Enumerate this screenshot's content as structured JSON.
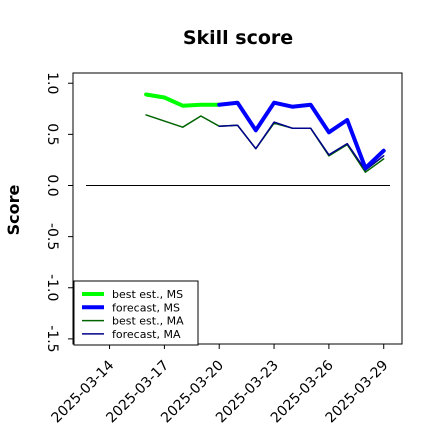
{
  "chart_data": {
    "type": "line",
    "title": "Skill score",
    "xlabel": "",
    "ylabel": "Score",
    "ylim": [
      -1.55,
      1.1
    ],
    "yticks": [
      1.0,
      0.5,
      0.0,
      -0.5,
      -1.0,
      -1.5
    ],
    "ytick_labels": [
      "1.0",
      "0.5",
      "0.0",
      "-0.5",
      "-1.0",
      "-1.5"
    ],
    "xlim": [
      "2025-03-12",
      "2025-03-30"
    ],
    "xticks": [
      "2025-03-14",
      "2025-03-17",
      "2025-03-20",
      "2025-03-23",
      "2025-03-26",
      "2025-03-29"
    ],
    "xtick_labels": [
      "2025-03-14",
      "2025-03-17",
      "2025-03-20",
      "2025-03-23",
      "2025-03-26",
      "2025-03-29"
    ],
    "xtick_label_colors": [
      "#000000",
      "#000000",
      "#228B22",
      "#000000",
      "#000000",
      "#000000"
    ],
    "reference_line": {
      "y": 0,
      "color": "#000000"
    },
    "legend": {
      "placement": "lower-left"
    },
    "grid": false,
    "series": [
      {
        "name": "best est., MS",
        "color": "#00ff00",
        "width": "thick",
        "x": [
          "2025-03-16",
          "2025-03-17",
          "2025-03-18",
          "2025-03-19",
          "2025-03-20"
        ],
        "values": [
          0.89,
          0.86,
          0.78,
          0.79,
          0.79
        ]
      },
      {
        "name": "forecast, MS",
        "color": "#0000ff",
        "width": "thick",
        "x": [
          "2025-03-20",
          "2025-03-21",
          "2025-03-22",
          "2025-03-23",
          "2025-03-24",
          "2025-03-25",
          "2025-03-26",
          "2025-03-27",
          "2025-03-28",
          "2025-03-29"
        ],
        "values": [
          0.79,
          0.81,
          0.54,
          0.81,
          0.77,
          0.79,
          0.52,
          0.64,
          0.17,
          0.34
        ]
      },
      {
        "name": "best est., MA",
        "color": "#006400",
        "width": "thin",
        "x": [
          "2025-03-16",
          "2025-03-17",
          "2025-03-18",
          "2025-03-19",
          "2025-03-20",
          "2025-03-21",
          "2025-03-22",
          "2025-03-23",
          "2025-03-24",
          "2025-03-25",
          "2025-03-26",
          "2025-03-27",
          "2025-03-28",
          "2025-03-29"
        ],
        "values": [
          0.69,
          0.63,
          0.57,
          0.68,
          0.58,
          0.59,
          0.36,
          0.61,
          0.56,
          0.56,
          0.29,
          0.4,
          0.13,
          0.26
        ]
      },
      {
        "name": "forecast, MA",
        "color": "#00008b",
        "width": "thin",
        "x": [
          "2025-03-20",
          "2025-03-21",
          "2025-03-22",
          "2025-03-23",
          "2025-03-24",
          "2025-03-25",
          "2025-03-26",
          "2025-03-27",
          "2025-03-28",
          "2025-03-29"
        ],
        "values": [
          0.58,
          0.59,
          0.36,
          0.62,
          0.56,
          0.56,
          0.3,
          0.41,
          0.15,
          0.29
        ]
      }
    ]
  }
}
